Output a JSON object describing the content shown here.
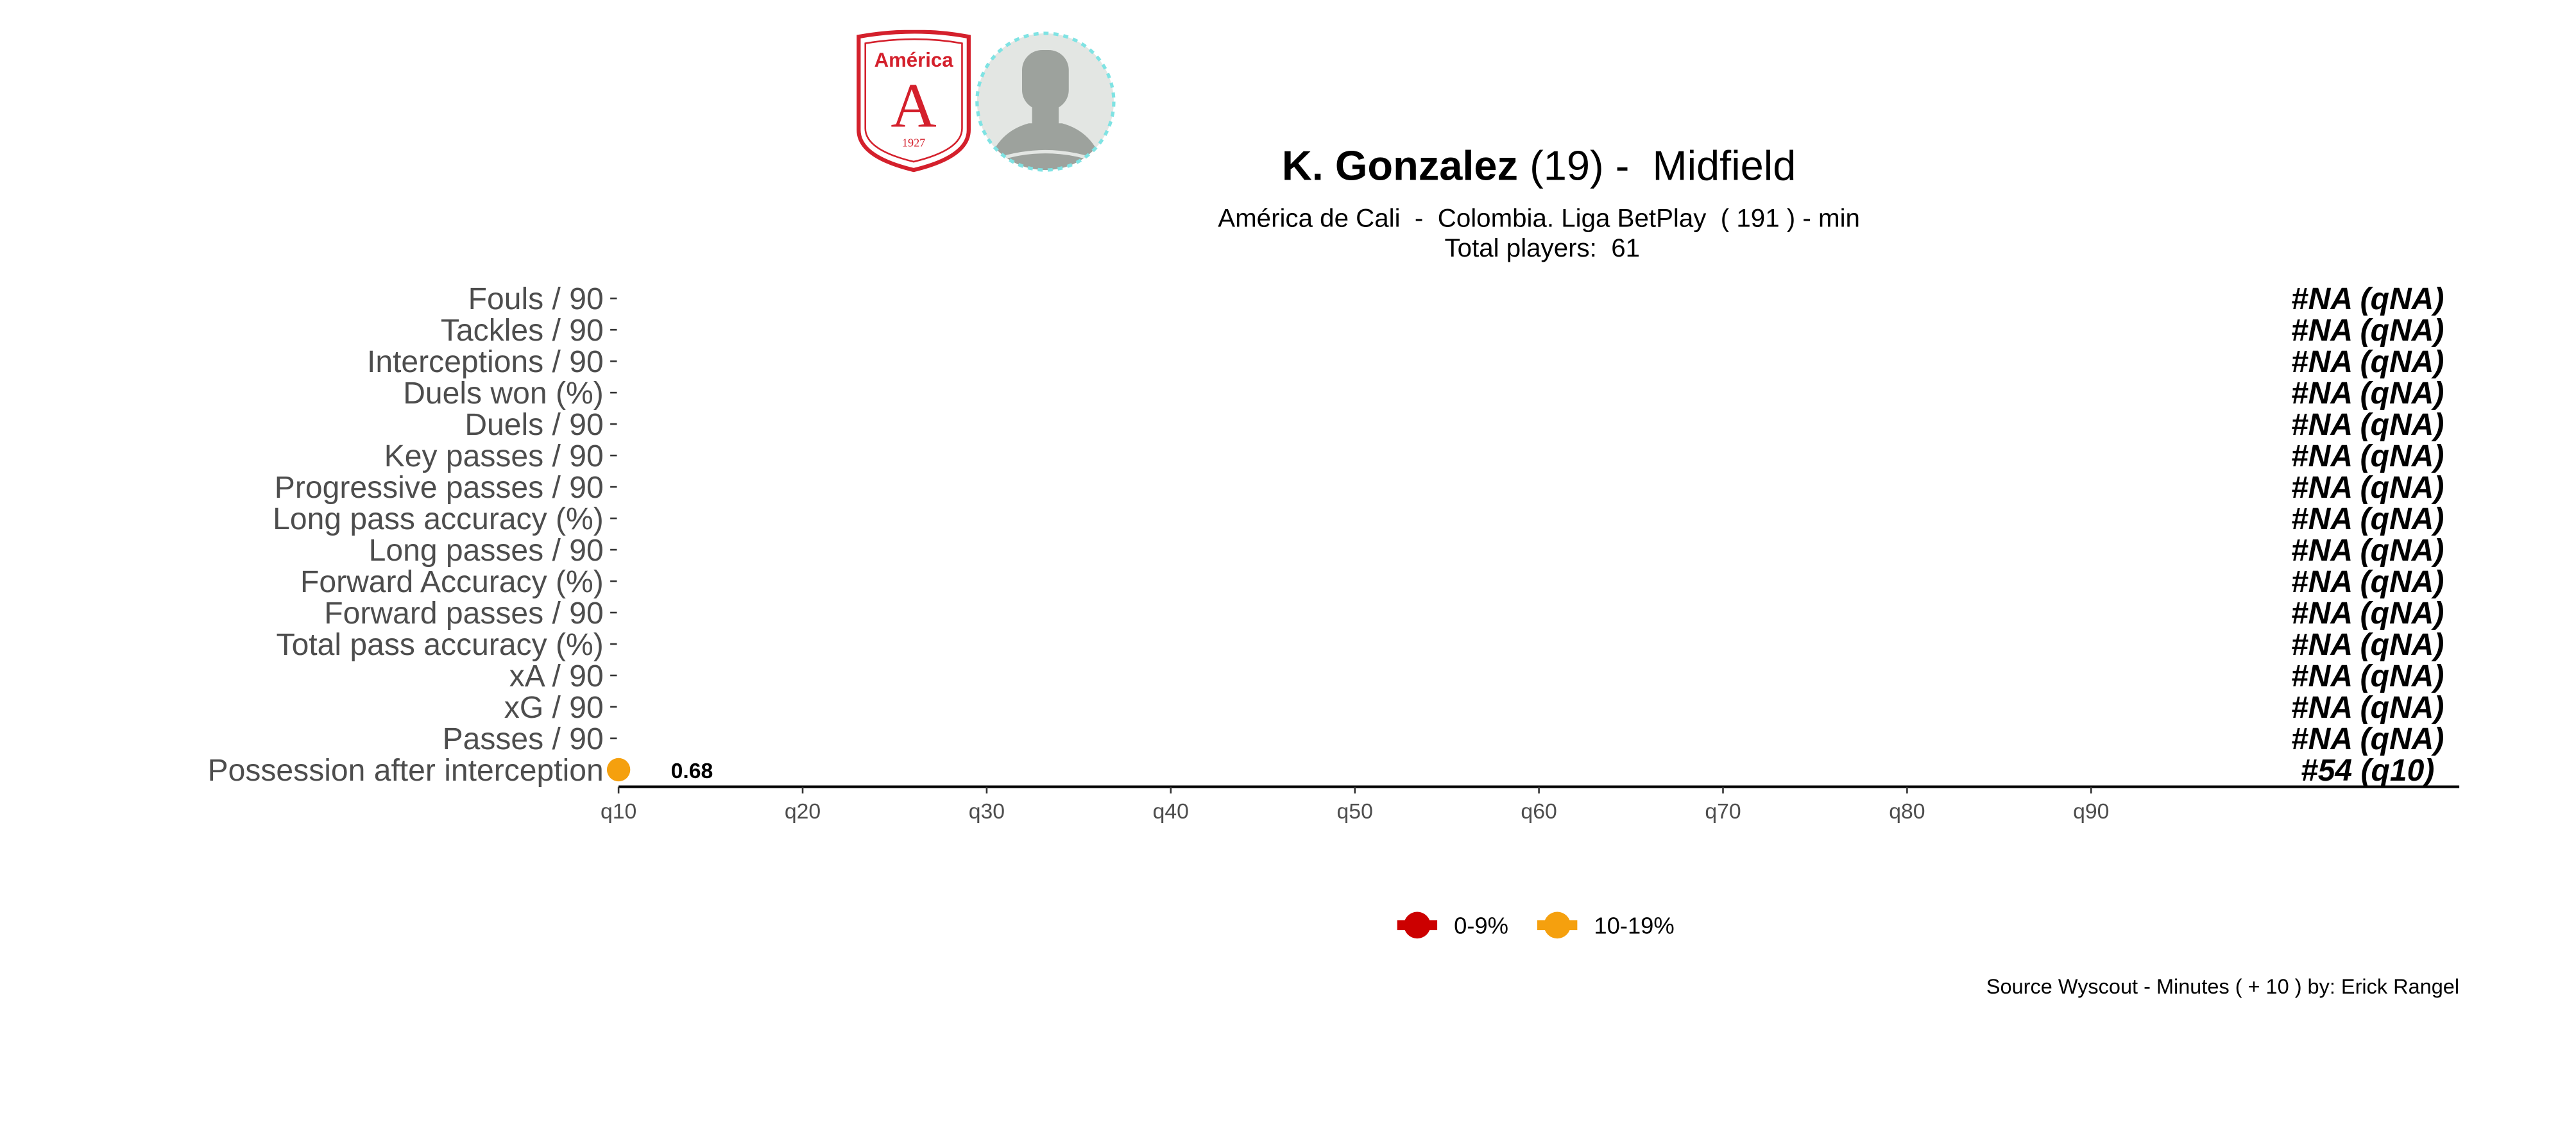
{
  "header": {
    "club_logo": {
      "icon": "america-de-cali-crest-icon",
      "top_text": "América",
      "letter": "A",
      "year": "1927",
      "color": "#d4202c"
    },
    "player_photo": {
      "icon": "player-silhouette-icon",
      "border_color": "#7fe3e3"
    },
    "player_name": "K. Gonzalez",
    "age": "(19)",
    "separator": " -  ",
    "position": "Midfield",
    "subtitle": "América de Cali  -  Colombia. Liga BetPlay  ( 191 ) - min",
    "total_players_label": "Total players:  61"
  },
  "chart_data": {
    "type": "scatter",
    "orientation": "horizontal",
    "x_axis": {
      "ticks": [
        "q10",
        "q20",
        "q30",
        "q40",
        "q50",
        "q60",
        "q70",
        "q80",
        "q90"
      ],
      "range": [
        10,
        110
      ]
    },
    "categories": [
      "Fouls / 90",
      "Tackles / 90",
      "Interceptions / 90",
      "Duels won (%)",
      "Duels / 90",
      "Key passes / 90",
      "Progressive passes / 90",
      "Long pass accuracy (%)",
      "Long passes / 90",
      "Forward Accuracy (%)",
      "Forward passes / 90",
      "Total pass accuracy (%)",
      "xA / 90",
      "xG / 90",
      "Passes / 90",
      "Possession after interception"
    ],
    "rank_labels": [
      "#NA (qNA)",
      "#NA (qNA)",
      "#NA (qNA)",
      "#NA (qNA)",
      "#NA (qNA)",
      "#NA (qNA)",
      "#NA (qNA)",
      "#NA (qNA)",
      "#NA (qNA)",
      "#NA (qNA)",
      "#NA (qNA)",
      "#NA (qNA)",
      "#NA (qNA)",
      "#NA (qNA)",
      "#NA (qNA)",
      "#54 (q10)"
    ],
    "points": [
      {
        "category": "Possession after interception",
        "percentile": 10,
        "value_label": "0.68",
        "color": "#f5a00e"
      }
    ],
    "legend": [
      {
        "label": "0-9%",
        "color": "#cc0000"
      },
      {
        "label": "10-19%",
        "color": "#f5a00e"
      }
    ],
    "legend_position": "bottom",
    "grid": false
  },
  "caption": "Source Wyscout - Minutes ( + 10 ) by: Erick Rangel"
}
